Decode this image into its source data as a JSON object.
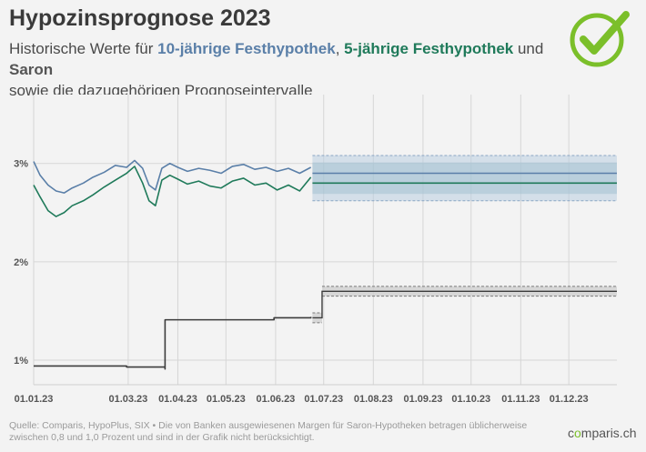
{
  "header": {
    "title": "Hypozinsprognose 2023",
    "subtitle_prefix": "Historische Werte für ",
    "subtitle_10y": "10-jährige Festhypothek",
    "subtitle_sep": ", ",
    "subtitle_5y": "5-jährige Festhypothek",
    "subtitle_and": " und ",
    "subtitle_saron": "Saron",
    "subtitle_line2": "sowie die dazugehörigen Prognoseintervalle"
  },
  "footer": {
    "source": "Quelle: Comparis, HypoPlus, SIX • Die von Banken ausgewiesenen Margen für Saron-Hypotheken betragen üblicherweise zwischen 0,8 und 1,0 Prozent und sind in der Grafik nicht berücksichtigt.",
    "logo_pre": "c",
    "logo_dot": "o",
    "logo_post": "mparis.ch"
  },
  "colors": {
    "ten_year": "#5a7fa8",
    "five_year": "#1f7a5a",
    "saron": "#3c3c3c",
    "forecast_band": "#b9cde0",
    "check": "#7bbf2a"
  },
  "icons": {
    "logo": "check-circle-icon"
  },
  "chart_data": {
    "type": "line",
    "x_unit": "date",
    "xlim": [
      "2023-01-01",
      "2023-12-31"
    ],
    "ylim": [
      0.75,
      3.7
    ],
    "yticks": [
      1,
      2,
      3
    ],
    "ytick_labels": [
      "1%",
      "2%",
      "3%"
    ],
    "xticks": [
      "2023-01-01",
      "2023-03-01",
      "2023-04-01",
      "2023-05-01",
      "2023-06-01",
      "2023-07-01",
      "2023-08-01",
      "2023-09-01",
      "2023-10-01",
      "2023-11-01",
      "2023-12-01"
    ],
    "xtick_labels": [
      "01.01.23",
      "01.03.23",
      "01.04.23",
      "01.05.23",
      "01.06.23",
      "01.07.23",
      "01.08.23",
      "01.09.23",
      "01.10.23",
      "01.11.23",
      "01.12.23"
    ],
    "grid": true,
    "series": [
      {
        "name": "10-jährige Festhypothek",
        "x": [
          "2023-01-01",
          "2023-01-05",
          "2023-01-10",
          "2023-01-15",
          "2023-01-20",
          "2023-01-25",
          "2023-02-01",
          "2023-02-07",
          "2023-02-14",
          "2023-02-21",
          "2023-02-28",
          "2023-03-05",
          "2023-03-10",
          "2023-03-14",
          "2023-03-18",
          "2023-03-22",
          "2023-03-27",
          "2023-04-01",
          "2023-04-07",
          "2023-04-14",
          "2023-04-21",
          "2023-04-28",
          "2023-05-05",
          "2023-05-12",
          "2023-05-19",
          "2023-05-26",
          "2023-06-02",
          "2023-06-09",
          "2023-06-16",
          "2023-06-23"
        ],
        "values": [
          3.02,
          2.88,
          2.78,
          2.72,
          2.7,
          2.75,
          2.8,
          2.86,
          2.91,
          2.98,
          2.96,
          3.03,
          2.95,
          2.78,
          2.73,
          2.95,
          3.0,
          2.96,
          2.92,
          2.95,
          2.93,
          2.9,
          2.97,
          2.99,
          2.94,
          2.96,
          2.92,
          2.95,
          2.9,
          2.96
        ]
      },
      {
        "name": "5-jährige Festhypothek",
        "x": [
          "2023-01-01",
          "2023-01-05",
          "2023-01-10",
          "2023-01-15",
          "2023-01-20",
          "2023-01-25",
          "2023-02-01",
          "2023-02-07",
          "2023-02-14",
          "2023-02-21",
          "2023-02-28",
          "2023-03-05",
          "2023-03-10",
          "2023-03-14",
          "2023-03-18",
          "2023-03-22",
          "2023-03-27",
          "2023-04-01",
          "2023-04-07",
          "2023-04-14",
          "2023-04-21",
          "2023-04-28",
          "2023-05-05",
          "2023-05-12",
          "2023-05-19",
          "2023-05-26",
          "2023-06-02",
          "2023-06-09",
          "2023-06-16",
          "2023-06-23"
        ],
        "values": [
          2.78,
          2.66,
          2.52,
          2.46,
          2.5,
          2.57,
          2.62,
          2.68,
          2.76,
          2.83,
          2.9,
          2.97,
          2.8,
          2.62,
          2.57,
          2.83,
          2.88,
          2.84,
          2.79,
          2.82,
          2.77,
          2.75,
          2.82,
          2.85,
          2.78,
          2.8,
          2.73,
          2.78,
          2.72,
          2.86
        ]
      },
      {
        "name": "Saron",
        "x": [
          "2023-01-01",
          "2023-01-31",
          "2023-02-28",
          "2023-03-24",
          "2023-03-24",
          "2023-04-30",
          "2023-05-31",
          "2023-06-23"
        ],
        "values": [
          0.94,
          0.94,
          0.93,
          0.91,
          1.41,
          1.41,
          1.43,
          1.44
        ],
        "step": true
      }
    ],
    "forecast": {
      "start": "2023-06-24",
      "end": "2023-12-31",
      "ten_year": {
        "center": 2.9,
        "lower": 2.62,
        "upper": 3.08
      },
      "five_year": {
        "center": 2.8,
        "lower": 2.62,
        "upper": 3.08
      },
      "saron": [
        {
          "start": "2023-06-24",
          "end": "2023-06-30",
          "center": 1.43,
          "lower": 1.38,
          "upper": 1.48
        },
        {
          "start": "2023-06-30",
          "end": "2023-12-31",
          "center": 1.7,
          "lower": 1.65,
          "upper": 1.75
        }
      ]
    }
  }
}
